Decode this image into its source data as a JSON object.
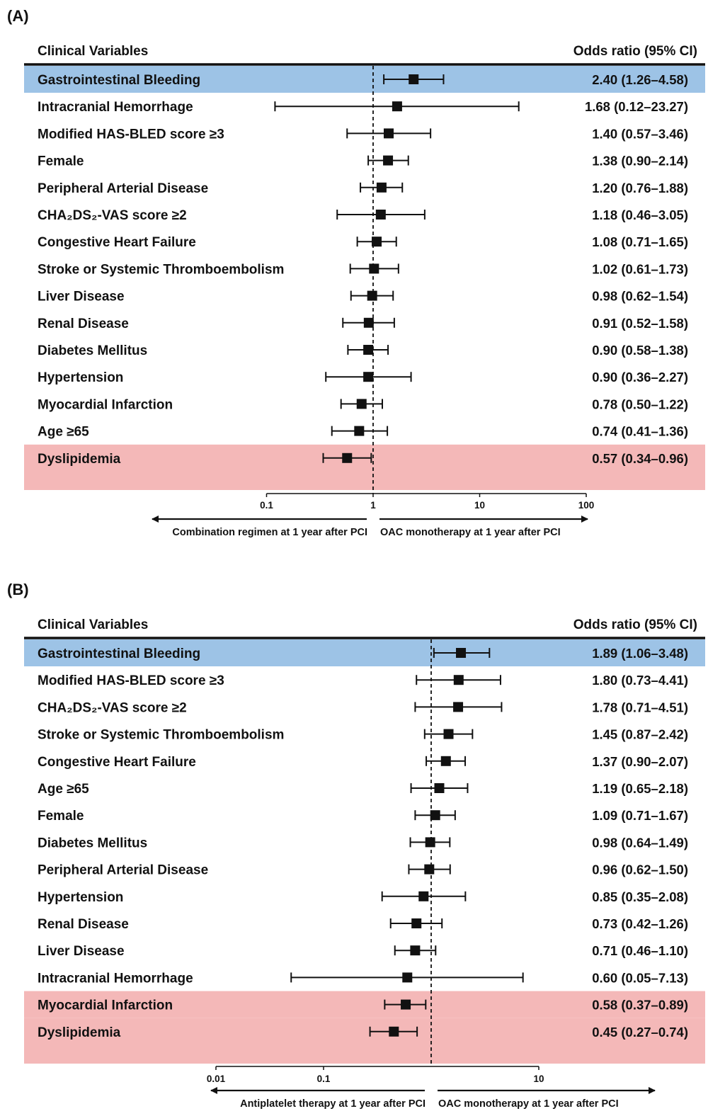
{
  "chart_data": [
    {
      "type": "forest",
      "panel_label": "(A)",
      "column_headers": {
        "variables": "Clinical Variables",
        "estimate": "Odds ratio (95% CI)"
      },
      "x_scale": "log",
      "xlim": [
        0.1,
        100
      ],
      "x_ticks": [
        {
          "value": 0.1,
          "label": "0.1"
        },
        {
          "value": 1,
          "label": "1"
        },
        {
          "value": 10,
          "label": "10"
        },
        {
          "value": 100,
          "label": "100"
        }
      ],
      "reference_line": 1,
      "direction_labels": {
        "left": "Combination regimen at 1 year after PCI",
        "right": "OAC monotherapy at 1 year after PCI"
      },
      "highlight_colors": {
        "blue": "#9dc3e6",
        "red": "#f4b8b8"
      },
      "rows": [
        {
          "label": "Gastrointestinal Bleeding",
          "or": 2.4,
          "lo": 1.26,
          "hi": 4.58,
          "text": "2.40 (1.26–4.58)",
          "highlight": "blue"
        },
        {
          "label": "Intracranial Hemorrhage",
          "or": 1.68,
          "lo": 0.12,
          "hi": 23.27,
          "text": "1.68 (0.12–23.27)"
        },
        {
          "label": "Modified HAS-BLED score ≥3",
          "or": 1.4,
          "lo": 0.57,
          "hi": 3.46,
          "text": "1.40 (0.57–3.46)"
        },
        {
          "label": "Female",
          "or": 1.38,
          "lo": 0.9,
          "hi": 2.14,
          "text": "1.38 (0.90–2.14)"
        },
        {
          "label": "Peripheral Arterial Disease",
          "or": 1.2,
          "lo": 0.76,
          "hi": 1.88,
          "text": "1.20 (0.76–1.88)"
        },
        {
          "label": "CHA₂DS₂-VAS score ≥2",
          "or": 1.18,
          "lo": 0.46,
          "hi": 3.05,
          "text": "1.18 (0.46–3.05)"
        },
        {
          "label": "Congestive Heart Failure",
          "or": 1.08,
          "lo": 0.71,
          "hi": 1.65,
          "text": "1.08 (0.71–1.65)"
        },
        {
          "label": "Stroke or Systemic Thromboembolism",
          "or": 1.02,
          "lo": 0.61,
          "hi": 1.73,
          "text": "1.02 (0.61–1.73)"
        },
        {
          "label": "Liver Disease",
          "or": 0.98,
          "lo": 0.62,
          "hi": 1.54,
          "text": "0.98 (0.62–1.54)"
        },
        {
          "label": "Renal Disease",
          "or": 0.91,
          "lo": 0.52,
          "hi": 1.58,
          "text": "0.91 (0.52–1.58)"
        },
        {
          "label": "Diabetes Mellitus",
          "or": 0.9,
          "lo": 0.58,
          "hi": 1.38,
          "text": "0.90 (0.58–1.38)"
        },
        {
          "label": "Hypertension",
          "or": 0.9,
          "lo": 0.36,
          "hi": 2.27,
          "text": "0.90 (0.36–2.27)"
        },
        {
          "label": "Myocardial Infarction",
          "or": 0.78,
          "lo": 0.5,
          "hi": 1.22,
          "text": "0.78 (0.50–1.22)"
        },
        {
          "label": "Age ≥65",
          "or": 0.74,
          "lo": 0.41,
          "hi": 1.36,
          "text": "0.74 (0.41–1.36)"
        },
        {
          "label": "Dyslipidemia",
          "or": 0.57,
          "lo": 0.34,
          "hi": 0.96,
          "text": "0.57 (0.34–0.96)",
          "highlight": "red"
        }
      ]
    },
    {
      "type": "forest",
      "panel_label": "(B)",
      "column_headers": {
        "variables": "Clinical Variables",
        "estimate": "Odds ratio (95% CI)"
      },
      "x_scale": "log",
      "xlim": [
        0.01,
        10
      ],
      "x_ticks": [
        {
          "value": 0.01,
          "label": "0.01"
        },
        {
          "value": 0.1,
          "label": "0.1"
        },
        {
          "value": 10,
          "label": "10"
        }
      ],
      "reference_line": 1,
      "direction_labels": {
        "left": "Antiplatelet therapy at 1 year after PCI",
        "right": "OAC monotherapy at 1 year after PCI"
      },
      "highlight_colors": {
        "blue": "#9dc3e6",
        "red": "#f4b8b8"
      },
      "rows": [
        {
          "label": "Gastrointestinal Bleeding",
          "or": 1.89,
          "lo": 1.06,
          "hi": 3.48,
          "text": "1.89 (1.06–3.48)",
          "highlight": "blue"
        },
        {
          "label": "Modified HAS-BLED score ≥3",
          "or": 1.8,
          "lo": 0.73,
          "hi": 4.41,
          "text": "1.80 (0.73–4.41)"
        },
        {
          "label": "CHA₂DS₂-VAS score ≥2",
          "or": 1.78,
          "lo": 0.71,
          "hi": 4.51,
          "text": "1.78 (0.71–4.51)"
        },
        {
          "label": "Stroke or Systemic Thromboembolism",
          "or": 1.45,
          "lo": 0.87,
          "hi": 2.42,
          "text": "1.45 (0.87–2.42)"
        },
        {
          "label": "Congestive Heart Failure",
          "or": 1.37,
          "lo": 0.9,
          "hi": 2.07,
          "text": "1.37 (0.90–2.07)"
        },
        {
          "label": "Age ≥65",
          "or": 1.19,
          "lo": 0.65,
          "hi": 2.18,
          "text": "1.19 (0.65–2.18)"
        },
        {
          "label": "Female",
          "or": 1.09,
          "lo": 0.71,
          "hi": 1.67,
          "text": "1.09 (0.71–1.67)"
        },
        {
          "label": "Diabetes Mellitus",
          "or": 0.98,
          "lo": 0.64,
          "hi": 1.49,
          "text": "0.98 (0.64–1.49)"
        },
        {
          "label": "Peripheral Arterial Disease",
          "or": 0.96,
          "lo": 0.62,
          "hi": 1.5,
          "text": "0.96 (0.62–1.50)"
        },
        {
          "label": "Hypertension",
          "or": 0.85,
          "lo": 0.35,
          "hi": 2.08,
          "text": "0.85 (0.35–2.08)"
        },
        {
          "label": "Renal Disease",
          "or": 0.73,
          "lo": 0.42,
          "hi": 1.26,
          "text": "0.73 (0.42–1.26)"
        },
        {
          "label": "Liver Disease",
          "or": 0.71,
          "lo": 0.46,
          "hi": 1.1,
          "text": "0.71 (0.46–1.10)"
        },
        {
          "label": "Intracranial Hemorrhage",
          "or": 0.6,
          "lo": 0.05,
          "hi": 7.13,
          "text": "0.60 (0.05–7.13)"
        },
        {
          "label": "Myocardial Infarction",
          "or": 0.58,
          "lo": 0.37,
          "hi": 0.89,
          "text": "0.58 (0.37–0.89)",
          "highlight": "red"
        },
        {
          "label": "Dyslipidemia",
          "or": 0.45,
          "lo": 0.27,
          "hi": 0.74,
          "text": "0.45 (0.27–0.74)",
          "highlight": "red"
        }
      ]
    }
  ]
}
